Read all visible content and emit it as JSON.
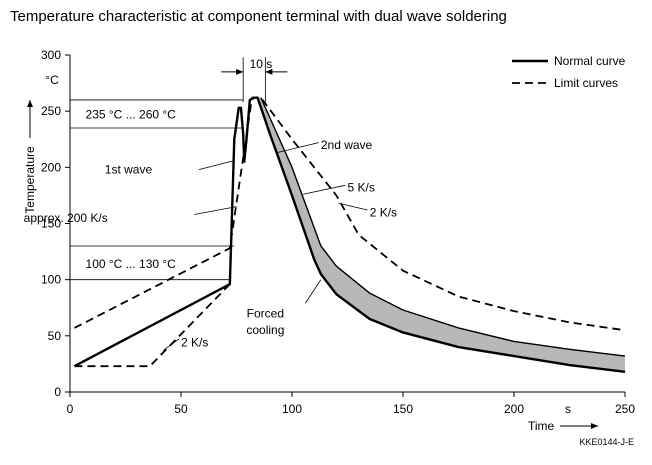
{
  "title": "Temperature characteristic at component terminal with dual wave soldering",
  "footer_code": "KKE0144-J-E",
  "chart_data": {
    "type": "line",
    "title": "Temperature characteristic at component terminal with dual wave soldering",
    "xlabel": "Time",
    "x_unit": "s",
    "ylabel": "Temperature",
    "y_unit": "°C",
    "xlim": [
      0,
      250
    ],
    "ylim": [
      0,
      300
    ],
    "xticks": [
      "0",
      "50",
      "100",
      "150",
      "200",
      "250"
    ],
    "yticks": [
      "0",
      "50",
      "100",
      "150",
      "200",
      "250",
      "300"
    ],
    "legend_position": "top-right",
    "grid": false,
    "legend": [
      {
        "label": "Normal curve",
        "style": "solid"
      },
      {
        "label": "Limit curves",
        "style": "dashed"
      }
    ],
    "series": [
      {
        "name": "Normal curve",
        "style": "solid",
        "x": [
          2,
          72,
          73,
          74,
          76,
          77,
          78,
          78.5,
          79.5,
          81,
          83,
          84.5,
          90,
          100,
          110,
          113,
          120,
          135,
          150,
          175,
          200,
          225,
          250
        ],
        "y": [
          23,
          96,
          160,
          225,
          253,
          253,
          230,
          205,
          225,
          260,
          262,
          262,
          230,
          175,
          118,
          105,
          87,
          65,
          53,
          40,
          32,
          24,
          18
        ]
      },
      {
        "name": "Limit curve (upper)",
        "style": "dashed",
        "x": [
          2,
          72,
          82,
          86,
          100,
          120,
          130,
          150,
          175,
          200,
          225,
          250
        ],
        "y": [
          57,
          128,
          262,
          262,
          225,
          175,
          140,
          108,
          85,
          72,
          62,
          55
        ]
      },
      {
        "name": "Limit curve (lower)",
        "style": "dashed",
        "x": [
          2,
          36,
          72
        ],
        "y": [
          23,
          23,
          96
        ]
      },
      {
        "name": "5 K/s boundary",
        "style": "solid",
        "x": [
          86,
          100,
          113,
          120,
          135,
          150,
          175,
          200,
          225,
          250
        ],
        "y": [
          262,
          200,
          130,
          112,
          88,
          73,
          57,
          45,
          38,
          32
        ]
      }
    ],
    "annotations": [
      {
        "text": "10 s",
        "x": 86,
        "y": 292
      },
      {
        "text": "235 °C ... 260 °C",
        "x": 7,
        "y": 247
      },
      {
        "text": "100 °C ... 130 °C",
        "x": 7,
        "y": 114
      },
      {
        "text": "1st wave",
        "x": 37,
        "y": 198
      },
      {
        "text": "approx. 200 K/s",
        "x": 17,
        "y": 155
      },
      {
        "text": "2nd wave",
        "x": 113,
        "y": 220
      },
      {
        "text": "5 K/s",
        "x": 125,
        "y": 182
      },
      {
        "text": "2 K/s",
        "x": 135,
        "y": 160
      },
      {
        "text": "Forced",
        "x": 88,
        "y": 70
      },
      {
        "text": "cooling",
        "x": 88,
        "y": 55
      },
      {
        "text": "2 K/s",
        "x": 50,
        "y": 44
      }
    ],
    "reference_lines": [
      {
        "type": "horizontal",
        "y": 260,
        "x_end": 78
      },
      {
        "type": "horizontal",
        "y": 235,
        "x_end": 78
      },
      {
        "type": "horizontal",
        "y": 130,
        "x_end": 74
      },
      {
        "type": "horizontal",
        "y": 100,
        "x_end": 72
      }
    ]
  }
}
